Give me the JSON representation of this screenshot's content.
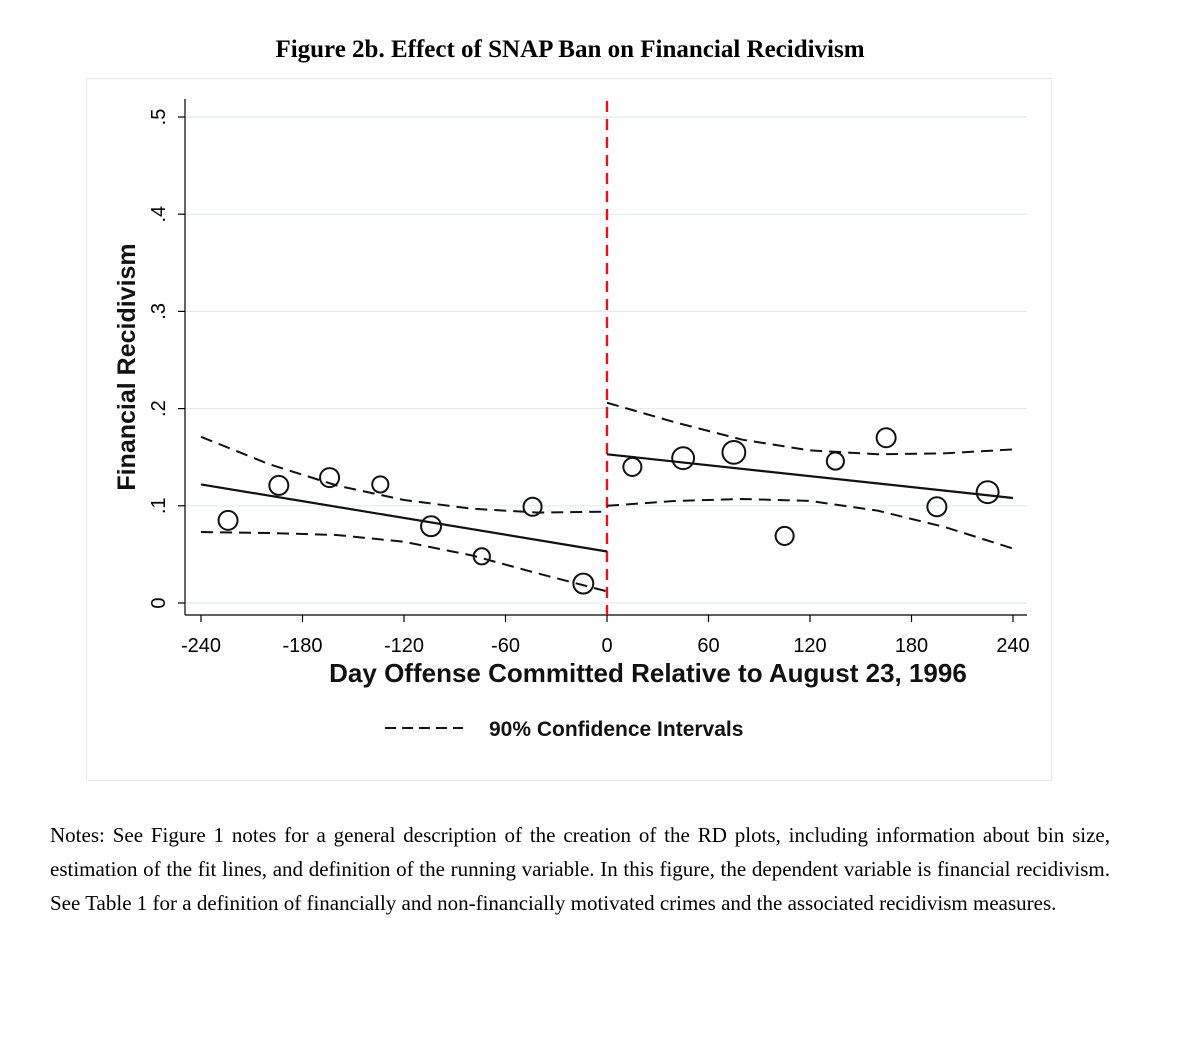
{
  "figure": {
    "title": "Figure 2b. Effect of SNAP Ban on Financial Recidivism"
  },
  "notes": "Notes: See Figure 1 notes for a general description of the creation of the RD plots, including information about bin size, estimation of the fit lines, and definition of the running variable. In this figure, the dependent variable is financial recidivism. See Table 1 for a definition of financially and non-financially motivated crimes and the associated recidivism measures.",
  "chart_data": {
    "type": "scatter",
    "title": "Figure 2b. Effect of SNAP Ban on Financial Recidivism",
    "xlabel": "Day Offense Committed Relative to August 23, 1996",
    "ylabel": "Financial Recidivism",
    "xlim": [
      -240,
      240
    ],
    "ylim": [
      0,
      0.5
    ],
    "x_ticks": [
      -240,
      -180,
      -120,
      -60,
      0,
      60,
      120,
      180,
      240
    ],
    "x_tick_labels": [
      "-240",
      "-180",
      "-120",
      "-60",
      "0",
      "60",
      "120",
      "180",
      "240"
    ],
    "y_ticks": [
      0,
      0.1,
      0.2,
      0.3,
      0.4,
      0.5
    ],
    "y_tick_labels": [
      "0",
      ".1",
      ".2",
      ".3",
      ".4",
      ".5"
    ],
    "grid": true,
    "cutoff": 0,
    "legend": {
      "label": "90% Confidence Intervals",
      "placement": "bottom"
    },
    "series": [
      {
        "name": "Binned means",
        "kind": "scatter",
        "x": [
          -224,
          -194,
          -164,
          -134,
          -104,
          -74,
          -44,
          -14,
          15,
          45,
          75,
          105,
          135,
          165,
          195,
          225
        ],
        "y": [
          0.085,
          0.121,
          0.129,
          0.122,
          0.079,
          0.048,
          0.099,
          0.02,
          0.14,
          0.149,
          0.155,
          0.069,
          0.146,
          0.17,
          0.099,
          0.114
        ],
        "weights": [
          1.0,
          1.0,
          1.0,
          0.85,
          1.05,
          0.85,
          0.95,
          1.05,
          0.95,
          1.15,
          1.2,
          0.95,
          0.9,
          1.0,
          1.0,
          1.15
        ]
      },
      {
        "name": "Fit left",
        "kind": "line",
        "x": [
          -240,
          0
        ],
        "y": [
          0.122,
          0.053
        ]
      },
      {
        "name": "Fit right",
        "kind": "line",
        "x": [
          0,
          240
        ],
        "y": [
          0.153,
          0.108
        ]
      },
      {
        "name": "CI upper left",
        "kind": "dashed",
        "x": [
          -240,
          -200,
          -160,
          -120,
          -80,
          -40,
          0
        ],
        "y": [
          0.171,
          0.143,
          0.121,
          0.106,
          0.097,
          0.093,
          0.094
        ]
      },
      {
        "name": "CI lower left",
        "kind": "dashed",
        "x": [
          -240,
          -200,
          -160,
          -120,
          -80,
          -40,
          0
        ],
        "y": [
          0.073,
          0.072,
          0.07,
          0.063,
          0.049,
          0.03,
          0.012
        ]
      },
      {
        "name": "CI upper right",
        "kind": "dashed",
        "x": [
          0,
          40,
          80,
          120,
          160,
          200,
          240
        ],
        "y": [
          0.206,
          0.186,
          0.168,
          0.157,
          0.153,
          0.154,
          0.158
        ]
      },
      {
        "name": "CI lower right",
        "kind": "dashed",
        "x": [
          0,
          40,
          80,
          120,
          160,
          200,
          240
        ],
        "y": [
          0.1,
          0.105,
          0.107,
          0.105,
          0.095,
          0.078,
          0.056
        ]
      }
    ]
  }
}
